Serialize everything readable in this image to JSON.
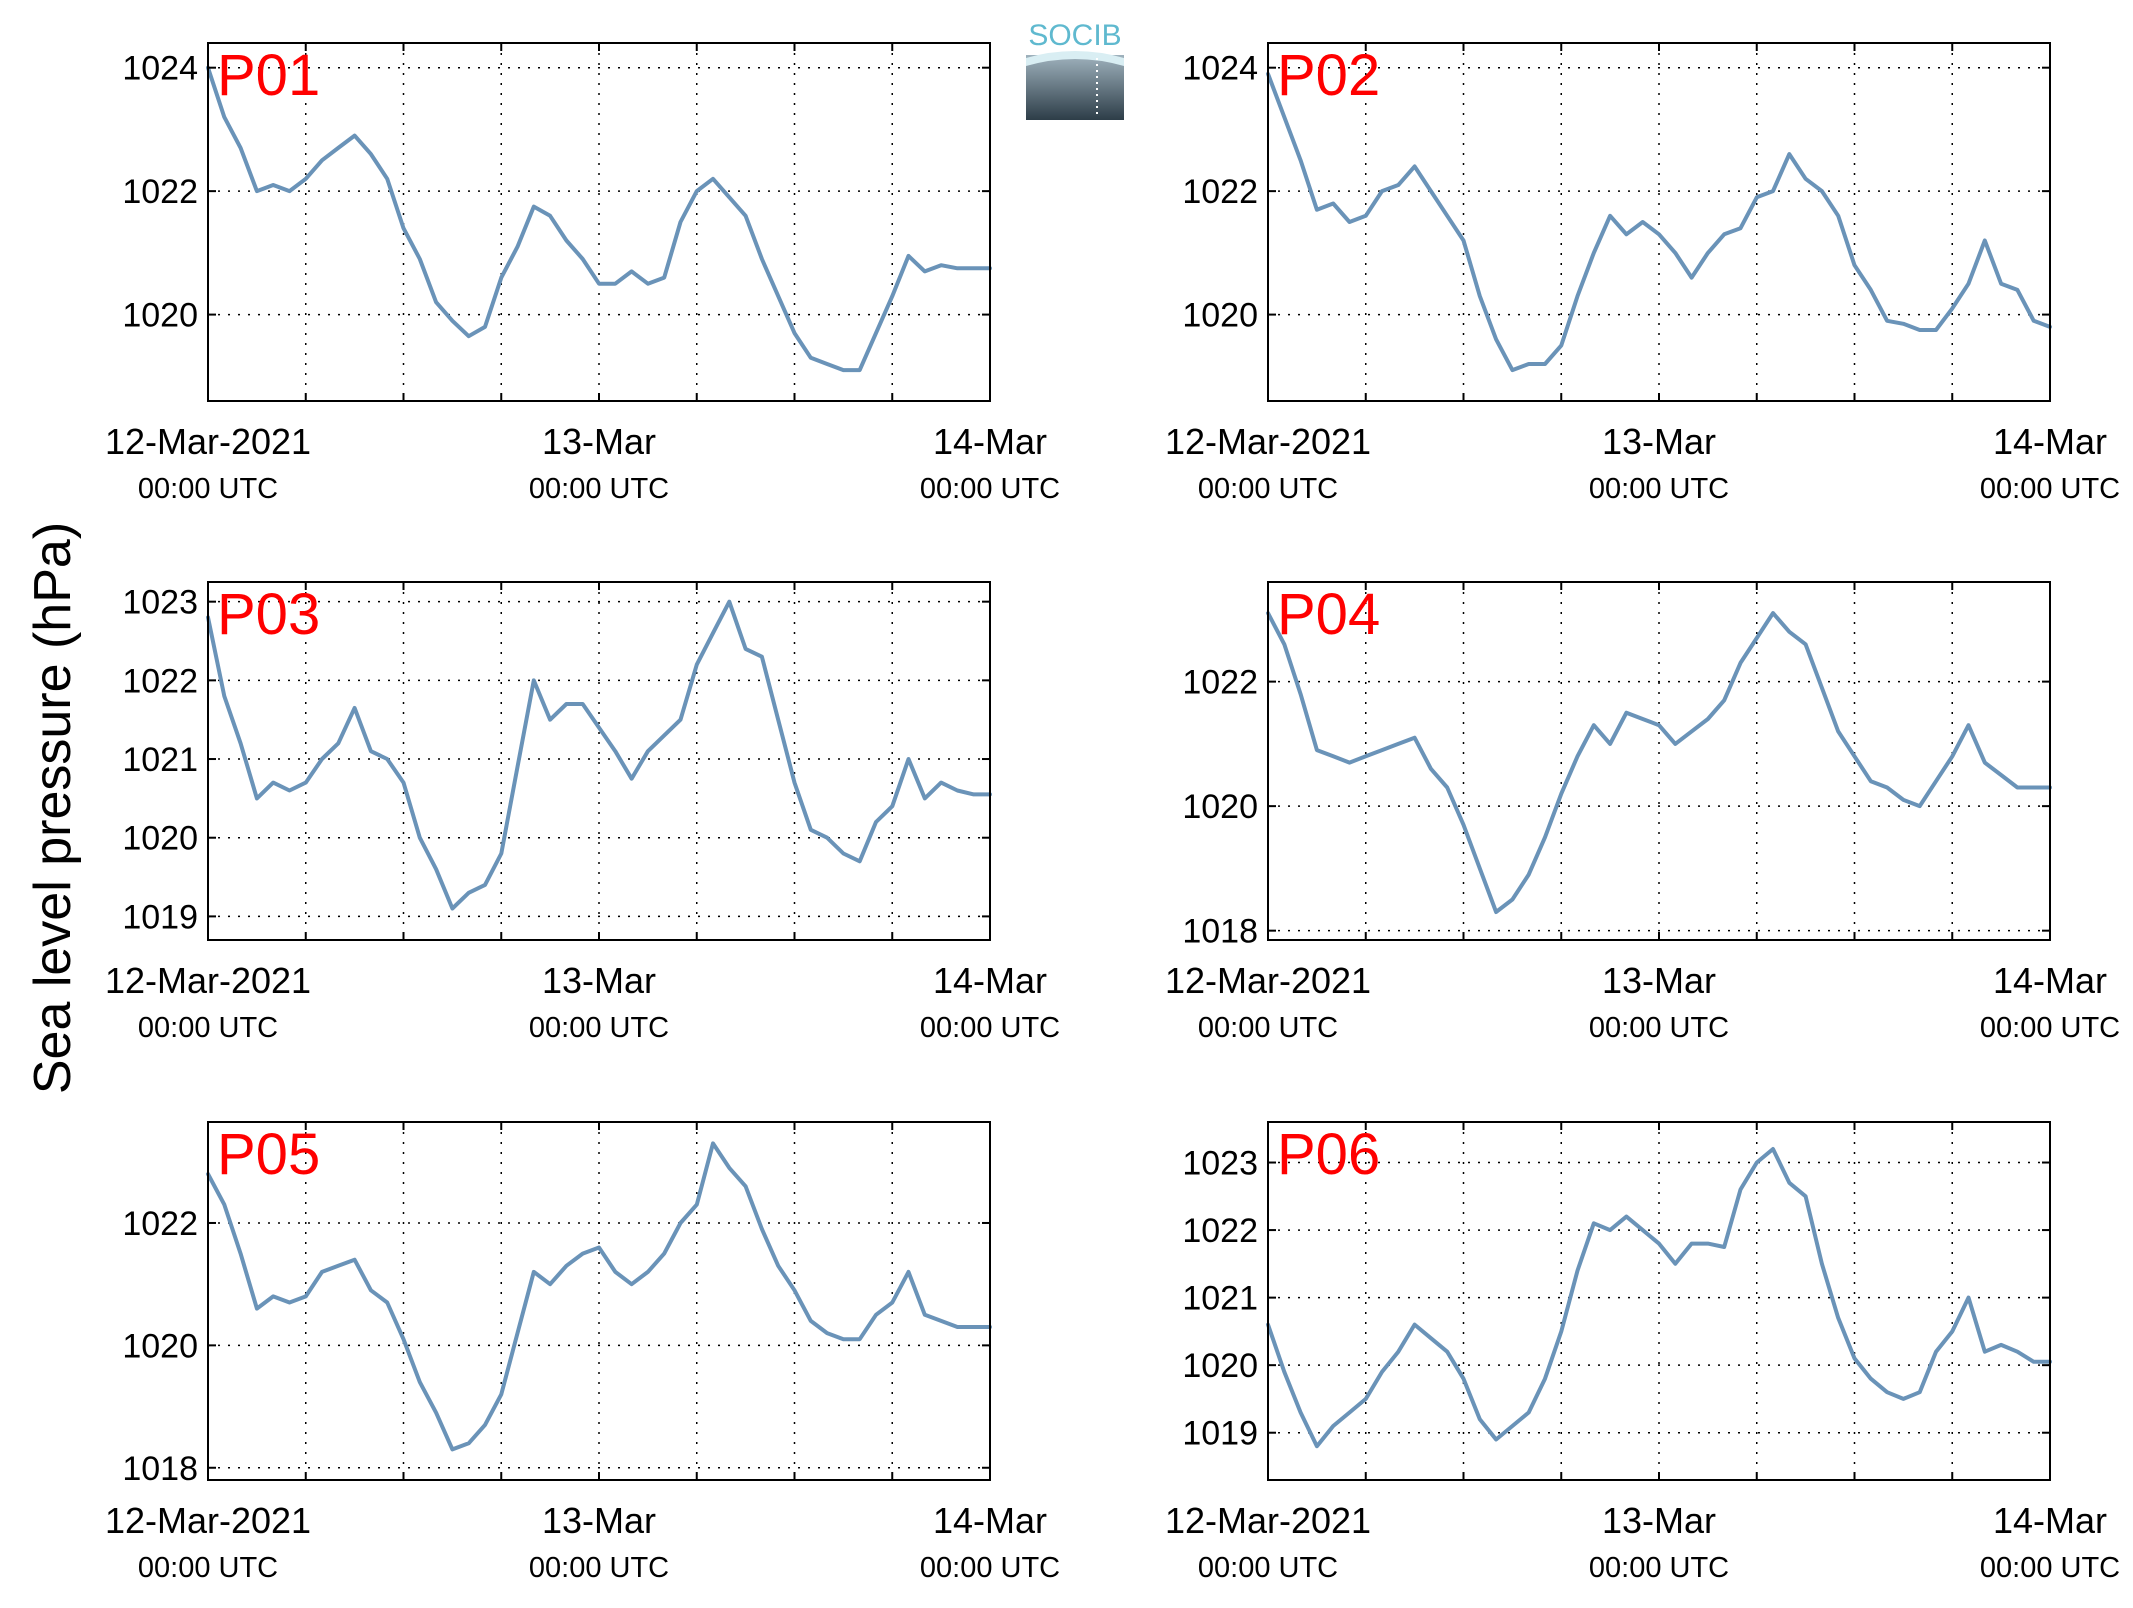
{
  "figure": {
    "ylabel": "Sea level pressure (hPa)",
    "logo_text": "SOCIB",
    "line_color": "#6a93b8",
    "station_label_color": "#ff0000"
  },
  "chart_data": [
    {
      "type": "line",
      "title": "P01",
      "xticks": [
        {
          "line1": "12-Mar-2021",
          "line2": "00:00 UTC"
        },
        {
          "line1": "13-Mar",
          "line2": "00:00 UTC"
        },
        {
          "line1": "14-Mar",
          "line2": "00:00 UTC"
        }
      ],
      "xlim_hours": [
        0,
        48
      ],
      "ylim": [
        1018.6,
        1024.4
      ],
      "yticks": [
        1020,
        1022,
        1024
      ],
      "grid": true,
      "series": [
        {
          "x": [
            0,
            1,
            2,
            3,
            4,
            5,
            6,
            7,
            8,
            9,
            10,
            11,
            12,
            13,
            14,
            15,
            16,
            17,
            18,
            19,
            20,
            21,
            22,
            23,
            24,
            25,
            26,
            27,
            28,
            29,
            30,
            31,
            32,
            33,
            34,
            35,
            36,
            37,
            38,
            39,
            40,
            41,
            42,
            43,
            44,
            45,
            46,
            47,
            48
          ],
          "values": [
            1024.0,
            1023.2,
            1022.7,
            1022.0,
            1022.1,
            1022.0,
            1022.2,
            1022.5,
            1022.7,
            1022.9,
            1022.6,
            1022.2,
            1021.4,
            1020.9,
            1020.2,
            1019.9,
            1019.65,
            1019.8,
            1020.6,
            1021.1,
            1021.75,
            1021.6,
            1021.2,
            1020.9,
            1020.5,
            1020.5,
            1020.7,
            1020.5,
            1020.6,
            1021.5,
            1022.0,
            1022.2,
            1021.9,
            1021.6,
            1020.9,
            1020.3,
            1019.7,
            1019.3,
            1019.2,
            1019.1,
            1019.1,
            1019.7,
            1020.3,
            1020.95,
            1020.7,
            1020.8,
            1020.75,
            1020.75,
            1020.75
          ]
        }
      ]
    },
    {
      "type": "line",
      "title": "P02",
      "xticks": [
        {
          "line1": "12-Mar-2021",
          "line2": "00:00 UTC"
        },
        {
          "line1": "13-Mar",
          "line2": "00:00 UTC"
        },
        {
          "line1": "14-Mar",
          "line2": "00:00 UTC"
        }
      ],
      "xlim_hours": [
        0,
        48
      ],
      "ylim": [
        1018.6,
        1024.4
      ],
      "yticks": [
        1020,
        1022,
        1024
      ],
      "grid": true,
      "series": [
        {
          "x": [
            0,
            1,
            2,
            3,
            4,
            5,
            6,
            7,
            8,
            9,
            10,
            11,
            12,
            13,
            14,
            15,
            16,
            17,
            18,
            19,
            20,
            21,
            22,
            23,
            24,
            25,
            26,
            27,
            28,
            29,
            30,
            31,
            32,
            33,
            34,
            35,
            36,
            37,
            38,
            39,
            40,
            41,
            42,
            43,
            44,
            45,
            46,
            47,
            48
          ],
          "values": [
            1023.9,
            1023.2,
            1022.5,
            1021.7,
            1021.8,
            1021.5,
            1021.6,
            1022.0,
            1022.1,
            1022.4,
            1022.0,
            1021.6,
            1021.2,
            1020.3,
            1019.6,
            1019.1,
            1019.2,
            1019.2,
            1019.5,
            1020.3,
            1021.0,
            1021.6,
            1021.3,
            1021.5,
            1021.3,
            1021.0,
            1020.6,
            1021.0,
            1021.3,
            1021.4,
            1021.9,
            1022.0,
            1022.6,
            1022.2,
            1022.0,
            1021.6,
            1020.8,
            1020.4,
            1019.9,
            1019.85,
            1019.75,
            1019.75,
            1020.1,
            1020.5,
            1021.2,
            1020.5,
            1020.4,
            1019.9,
            1019.8
          ]
        }
      ]
    },
    {
      "type": "line",
      "title": "P03",
      "xticks": [
        {
          "line1": "12-Mar-2021",
          "line2": "00:00 UTC"
        },
        {
          "line1": "13-Mar",
          "line2": "00:00 UTC"
        },
        {
          "line1": "14-Mar",
          "line2": "00:00 UTC"
        }
      ],
      "xlim_hours": [
        0,
        48
      ],
      "ylim": [
        1018.7,
        1023.25
      ],
      "yticks": [
        1019,
        1020,
        1021,
        1022,
        1023
      ],
      "grid": true,
      "series": [
        {
          "x": [
            0,
            1,
            2,
            3,
            4,
            5,
            6,
            7,
            8,
            9,
            10,
            11,
            12,
            13,
            14,
            15,
            16,
            17,
            18,
            19,
            20,
            21,
            22,
            23,
            24,
            25,
            26,
            27,
            28,
            29,
            30,
            31,
            32,
            33,
            34,
            35,
            36,
            37,
            38,
            39,
            40,
            41,
            42,
            43,
            44,
            45,
            46,
            47,
            48
          ],
          "values": [
            1022.8,
            1021.8,
            1021.2,
            1020.5,
            1020.7,
            1020.6,
            1020.7,
            1021.0,
            1021.2,
            1021.65,
            1021.1,
            1021.0,
            1020.7,
            1020.0,
            1019.6,
            1019.1,
            1019.3,
            1019.4,
            1019.8,
            1020.9,
            1022.0,
            1021.5,
            1021.7,
            1021.7,
            1021.4,
            1021.1,
            1020.75,
            1021.1,
            1021.3,
            1021.5,
            1022.2,
            1022.6,
            1023.0,
            1022.4,
            1022.3,
            1021.5,
            1020.7,
            1020.1,
            1020.0,
            1019.8,
            1019.7,
            1020.2,
            1020.4,
            1021.0,
            1020.5,
            1020.7,
            1020.6,
            1020.55,
            1020.55
          ]
        }
      ]
    },
    {
      "type": "line",
      "title": "P04",
      "xticks": [
        {
          "line1": "12-Mar-2021",
          "line2": "00:00 UTC"
        },
        {
          "line1": "13-Mar",
          "line2": "00:00 UTC"
        },
        {
          "line1": "14-Mar",
          "line2": "00:00 UTC"
        }
      ],
      "xlim_hours": [
        0,
        48
      ],
      "ylim": [
        1017.85,
        1023.6
      ],
      "yticks": [
        1018,
        1020,
        1022
      ],
      "grid": true,
      "series": [
        {
          "x": [
            0,
            1,
            2,
            3,
            4,
            5,
            6,
            7,
            8,
            9,
            10,
            11,
            12,
            13,
            14,
            15,
            16,
            17,
            18,
            19,
            20,
            21,
            22,
            23,
            24,
            25,
            26,
            27,
            28,
            29,
            30,
            31,
            32,
            33,
            34,
            35,
            36,
            37,
            38,
            39,
            40,
            41,
            42,
            43,
            44,
            45,
            46,
            47,
            48
          ],
          "values": [
            1023.1,
            1022.6,
            1021.8,
            1020.9,
            1020.8,
            1020.7,
            1020.8,
            1020.9,
            1021.0,
            1021.1,
            1020.6,
            1020.3,
            1019.7,
            1019.0,
            1018.3,
            1018.5,
            1018.9,
            1019.5,
            1020.2,
            1020.8,
            1021.3,
            1021.0,
            1021.5,
            1021.4,
            1021.3,
            1021.0,
            1021.2,
            1021.4,
            1021.7,
            1022.3,
            1022.7,
            1023.1,
            1022.8,
            1022.6,
            1021.9,
            1021.2,
            1020.8,
            1020.4,
            1020.3,
            1020.1,
            1020.0,
            1020.4,
            1020.8,
            1021.3,
            1020.7,
            1020.5,
            1020.3,
            1020.3,
            1020.3
          ]
        }
      ]
    },
    {
      "type": "line",
      "title": "P05",
      "xticks": [
        {
          "line1": "12-Mar-2021",
          "line2": "00:00 UTC"
        },
        {
          "line1": "13-Mar",
          "line2": "00:00 UTC"
        },
        {
          "line1": "14-Mar",
          "line2": "00:00 UTC"
        }
      ],
      "xlim_hours": [
        0,
        48
      ],
      "ylim": [
        1017.8,
        1023.65
      ],
      "yticks": [
        1018,
        1020,
        1022
      ],
      "grid": true,
      "series": [
        {
          "x": [
            0,
            1,
            2,
            3,
            4,
            5,
            6,
            7,
            8,
            9,
            10,
            11,
            12,
            13,
            14,
            15,
            16,
            17,
            18,
            19,
            20,
            21,
            22,
            23,
            24,
            25,
            26,
            27,
            28,
            29,
            30,
            31,
            32,
            33,
            34,
            35,
            36,
            37,
            38,
            39,
            40,
            41,
            42,
            43,
            44,
            45,
            46,
            47,
            48
          ],
          "values": [
            1022.8,
            1022.3,
            1021.5,
            1020.6,
            1020.8,
            1020.7,
            1020.8,
            1021.2,
            1021.3,
            1021.4,
            1020.9,
            1020.7,
            1020.1,
            1019.4,
            1018.9,
            1018.3,
            1018.4,
            1018.7,
            1019.2,
            1020.2,
            1021.2,
            1021.0,
            1021.3,
            1021.5,
            1021.6,
            1021.2,
            1021.0,
            1021.2,
            1021.5,
            1022.0,
            1022.3,
            1023.3,
            1022.9,
            1022.6,
            1021.9,
            1021.3,
            1020.9,
            1020.4,
            1020.2,
            1020.1,
            1020.1,
            1020.5,
            1020.7,
            1021.2,
            1020.5,
            1020.4,
            1020.3,
            1020.3,
            1020.3
          ]
        }
      ]
    },
    {
      "type": "line",
      "title": "P06",
      "xticks": [
        {
          "line1": "12-Mar-2021",
          "line2": "00:00 UTC"
        },
        {
          "line1": "13-Mar",
          "line2": "00:00 UTC"
        },
        {
          "line1": "14-Mar",
          "line2": "00:00 UTC"
        }
      ],
      "xlim_hours": [
        0,
        48
      ],
      "ylim": [
        1018.3,
        1023.6
      ],
      "yticks": [
        1019,
        1020,
        1021,
        1022,
        1023
      ],
      "grid": true,
      "series": [
        {
          "x": [
            0,
            1,
            2,
            3,
            4,
            5,
            6,
            7,
            8,
            9,
            10,
            11,
            12,
            13,
            14,
            15,
            16,
            17,
            18,
            19,
            20,
            21,
            22,
            23,
            24,
            25,
            26,
            27,
            28,
            29,
            30,
            31,
            32,
            33,
            34,
            35,
            36,
            37,
            38,
            39,
            40,
            41,
            42,
            43,
            44,
            45,
            46,
            47,
            48
          ],
          "values": [
            1020.6,
            1019.9,
            1019.3,
            1018.8,
            1019.1,
            1019.3,
            1019.5,
            1019.9,
            1020.2,
            1020.6,
            1020.4,
            1020.2,
            1019.8,
            1019.2,
            1018.9,
            1019.1,
            1019.3,
            1019.8,
            1020.5,
            1021.4,
            1022.1,
            1022.0,
            1022.2,
            1022.0,
            1021.8,
            1021.5,
            1021.8,
            1021.8,
            1021.75,
            1022.6,
            1023.0,
            1023.2,
            1022.7,
            1022.5,
            1021.5,
            1020.7,
            1020.1,
            1019.8,
            1019.6,
            1019.5,
            1019.6,
            1020.2,
            1020.5,
            1021.0,
            1020.2,
            1020.3,
            1020.2,
            1020.05,
            1020.05
          ]
        }
      ]
    }
  ]
}
